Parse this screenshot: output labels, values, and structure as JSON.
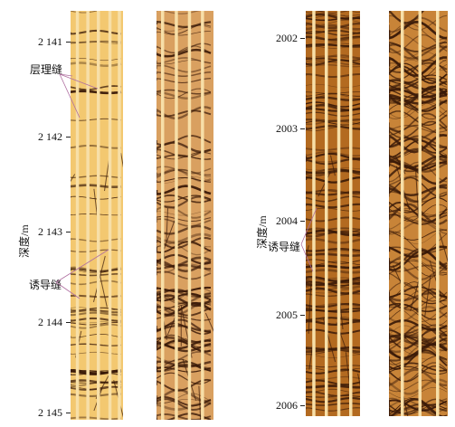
{
  "panels": [
    {
      "name": "left",
      "depth_unit_label": "深度/m",
      "depth_ticks": [
        "2 141",
        "2 142",
        "2 143",
        "2 144",
        "2 145"
      ],
      "annotations": [
        {
          "key": "bedding",
          "text": "层理缝"
        },
        {
          "key": "induced",
          "text": "诱导缝"
        }
      ]
    },
    {
      "name": "right",
      "depth_unit_label": "深度/m",
      "depth_ticks": [
        "2002",
        "2003",
        "2004",
        "2005",
        "2006"
      ],
      "annotations": [
        {
          "key": "induced",
          "text": "诱导缝"
        }
      ]
    }
  ],
  "colors": {
    "light_bg": "#f3c870",
    "light_stripe": "#f7dfa8",
    "dark_bg": "#b36a20",
    "dark_line": "#3a1a08",
    "leader": "#b070a0"
  }
}
